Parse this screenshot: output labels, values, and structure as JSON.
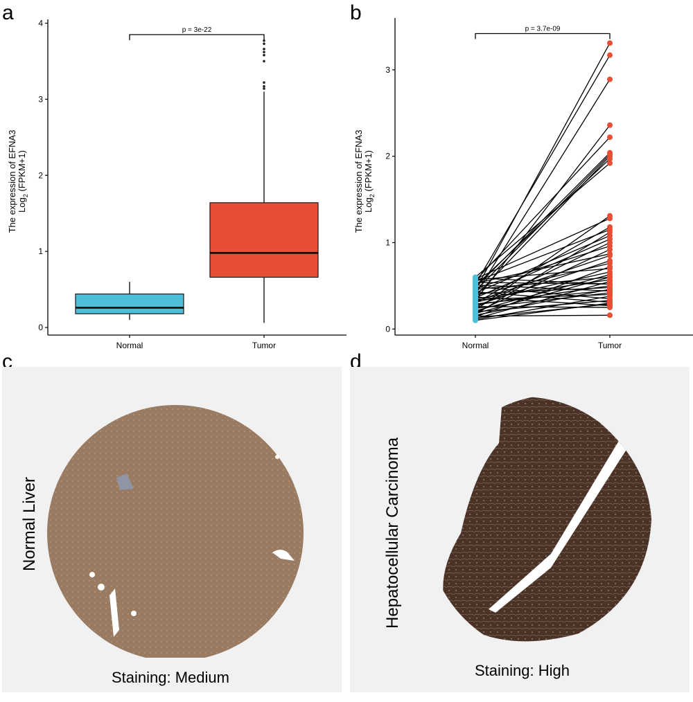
{
  "panels": {
    "a": {
      "letter": "a"
    },
    "b": {
      "letter": "b"
    },
    "c": {
      "letter": "c",
      "tissue_label": "Normal Liver",
      "caption": "Staining:  Medium",
      "stain_color": "#9a7b60"
    },
    "d": {
      "letter": "d",
      "tissue_label": "Hepatocellular Carcinoma",
      "caption": "Staining: High",
      "stain_color": "#4a3326"
    }
  },
  "chart_data": [
    {
      "type": "box",
      "panel": "a",
      "title": "",
      "ylabel_line1": "The expression of EFNA3",
      "ylabel_line2_prefix": "Log",
      "ylabel_line2_sub": "2",
      "ylabel_line2_suffix": " (FPKM+1)",
      "xlabel": "",
      "categories": [
        "Normal",
        "Tumor"
      ],
      "ylim": [
        -0.1,
        4.05
      ],
      "yticks": [
        0,
        1,
        2,
        3,
        4
      ],
      "ytick_labels": [
        "0",
        "1",
        "2",
        "3",
        "4"
      ],
      "boxes": [
        {
          "name": "Normal",
          "min": 0.1,
          "q1": 0.18,
          "median": 0.26,
          "q3": 0.44,
          "max": 0.6,
          "color": "#4ebfd9",
          "outliers": []
        },
        {
          "name": "Tumor",
          "min": 0.06,
          "q1": 0.66,
          "median": 0.98,
          "q3": 1.64,
          "max": 3.1,
          "color": "#e64e35",
          "outliers": [
            3.14,
            3.17,
            3.22,
            3.5,
            3.58,
            3.62,
            3.66,
            3.73,
            3.77
          ]
        }
      ],
      "annotation": {
        "text": "p = 3e-22",
        "y": 3.85
      },
      "grid": false
    },
    {
      "type": "paired-line",
      "panel": "b",
      "title": "",
      "ylabel_line1": "The expression of EFNA3",
      "ylabel_line2_prefix": "Log",
      "ylabel_line2_sub": "2",
      "ylabel_line2_suffix": " (FPKM+1)",
      "xlabel": "",
      "categories": [
        "Normal",
        "Tumor"
      ],
      "ylim": [
        -0.07,
        3.6
      ],
      "yticks": [
        0,
        1,
        2,
        3
      ],
      "ytick_labels": [
        "0",
        "1",
        "2",
        "3"
      ],
      "colors": {
        "Normal": "#4ebfd9",
        "Tumor": "#e64e35"
      },
      "pairs": [
        [
          0.45,
          3.31
        ],
        [
          0.52,
          3.17
        ],
        [
          0.4,
          2.89
        ],
        [
          0.33,
          2.36
        ],
        [
          0.56,
          2.22
        ],
        [
          0.48,
          2.04
        ],
        [
          0.44,
          2.02
        ],
        [
          0.38,
          2.0
        ],
        [
          0.5,
          1.97
        ],
        [
          0.6,
          1.92
        ],
        [
          0.22,
          1.31
        ],
        [
          0.58,
          1.28
        ],
        [
          0.3,
          1.18
        ],
        [
          0.55,
          1.15
        ],
        [
          0.17,
          1.12
        ],
        [
          0.42,
          1.08
        ],
        [
          0.36,
          1.04
        ],
        [
          0.25,
          1.0
        ],
        [
          0.47,
          0.96
        ],
        [
          0.19,
          0.92
        ],
        [
          0.53,
          0.87
        ],
        [
          0.27,
          0.79
        ],
        [
          0.39,
          0.76
        ],
        [
          0.14,
          0.72
        ],
        [
          0.57,
          0.7
        ],
        [
          0.31,
          0.66
        ],
        [
          0.21,
          0.63
        ],
        [
          0.46,
          0.6
        ],
        [
          0.35,
          0.57
        ],
        [
          0.12,
          0.55
        ],
        [
          0.59,
          0.52
        ],
        [
          0.28,
          0.5
        ],
        [
          0.41,
          0.48
        ],
        [
          0.16,
          0.46
        ],
        [
          0.51,
          0.44
        ],
        [
          0.24,
          0.42
        ],
        [
          0.34,
          0.4
        ],
        [
          0.11,
          0.38
        ],
        [
          0.49,
          0.35
        ],
        [
          0.2,
          0.33
        ],
        [
          0.43,
          0.31
        ],
        [
          0.13,
          0.29
        ],
        [
          0.37,
          0.27
        ],
        [
          0.26,
          0.25
        ],
        [
          0.15,
          0.16
        ],
        [
          0.54,
          0.52
        ],
        [
          0.32,
          0.85
        ],
        [
          0.18,
          0.6
        ],
        [
          0.29,
          0.45
        ],
        [
          0.1,
          0.3
        ]
      ],
      "annotation": {
        "text": "p = 3.7e-09",
        "y": 3.42
      },
      "grid": false
    }
  ]
}
